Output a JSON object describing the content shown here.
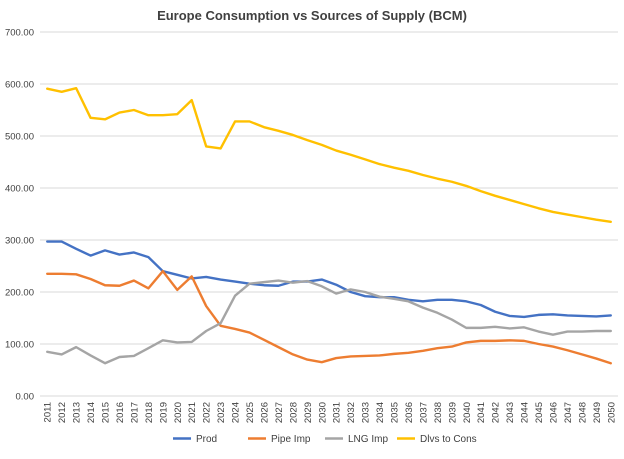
{
  "chart_data": {
    "type": "line",
    "title": "Europe Consumption vs Sources of Supply (BCM)",
    "xlabel": "",
    "ylabel": "",
    "ylim": [
      0,
      700
    ],
    "yticks": [
      "0.00",
      "100.00",
      "200.00",
      "300.00",
      "400.00",
      "500.00",
      "600.00",
      "700.00"
    ],
    "grid": true,
    "legend_position": "bottom",
    "x": [
      "2011",
      "2012",
      "2013",
      "2014",
      "2015",
      "2016",
      "2017",
      "2018",
      "2019",
      "2020",
      "2021",
      "2022",
      "2023",
      "2024",
      "2025",
      "2026",
      "2027",
      "2028",
      "2029",
      "2030",
      "2031",
      "2032",
      "2033",
      "2034",
      "2035",
      "2036",
      "2037",
      "2038",
      "2039",
      "2040",
      "2041",
      "2042",
      "2043",
      "2044",
      "2045",
      "2046",
      "2047",
      "2048",
      "2049",
      "2050"
    ],
    "series": [
      {
        "name": "Prod",
        "color": "#4472c4",
        "values": [
          297,
          297,
          283,
          270,
          280,
          272,
          276,
          267,
          240,
          233,
          226,
          229,
          224,
          220,
          216,
          213,
          212,
          220,
          220,
          224,
          214,
          200,
          192,
          190,
          190,
          185,
          182,
          185,
          185,
          182,
          175,
          162,
          154,
          152,
          156,
          157,
          155,
          154,
          153,
          155
        ]
      },
      {
        "name": "Pipe Imp",
        "color": "#ed7d31",
        "values": [
          235,
          235,
          234,
          225,
          213,
          212,
          222,
          207,
          240,
          204,
          230,
          173,
          135,
          129,
          122,
          108,
          94,
          80,
          70,
          65,
          73,
          76,
          77,
          78,
          81,
          83,
          87,
          92,
          95,
          103,
          106,
          106,
          107,
          106,
          100,
          95,
          88,
          80,
          72,
          63
        ]
      },
      {
        "name": "LNG Imp",
        "color": "#a5a5a5",
        "values": [
          85,
          80,
          94,
          78,
          63,
          75,
          77,
          92,
          107,
          103,
          104,
          125,
          140,
          193,
          216,
          219,
          222,
          218,
          221,
          211,
          197,
          205,
          200,
          191,
          187,
          182,
          170,
          160,
          147,
          131,
          131,
          133,
          130,
          132,
          124,
          118,
          124,
          124,
          125,
          125
        ]
      },
      {
        "name": "Dlvs to Cons",
        "color": "#ffc000",
        "values": [
          591,
          585,
          592,
          535,
          532,
          545,
          550,
          540,
          540,
          542,
          569,
          480,
          476,
          528,
          528,
          517,
          510,
          502,
          492,
          483,
          472,
          464,
          455,
          446,
          439,
          433,
          425,
          418,
          412,
          404,
          394,
          385,
          377,
          369,
          361,
          354,
          349,
          344,
          339,
          335
        ]
      }
    ]
  }
}
